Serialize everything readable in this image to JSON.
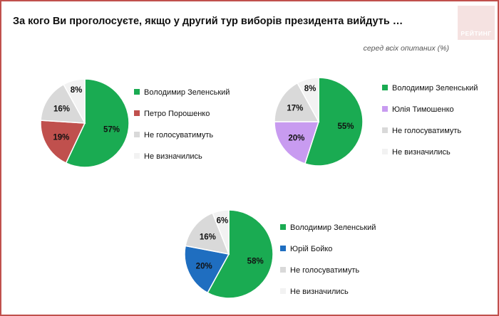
{
  "title": "За кого Ви проголосуєте, якщо у другий тур виборів президента вийдуть …",
  "subtitle": "серед всіх опитаних (%)",
  "logo": {
    "text": "РЕЙТИНГ"
  },
  "colors": {
    "green": "#1aab52",
    "red": "#c0504d",
    "lilac": "#c89bf0",
    "blue": "#1f6ec0",
    "gray": "#d9d9d9",
    "lightgray": "#f2f2f2",
    "frame": "#c0504d"
  },
  "chart_data": [
    {
      "type": "pie",
      "labels": [
        "Володимир Зеленський",
        "Петро Порошенко",
        "Не голосуватимуть",
        "Не визначились"
      ],
      "values": [
        57,
        19,
        16,
        8
      ],
      "value_labels": [
        "57%",
        "19%",
        "16%",
        "8%"
      ],
      "colors": [
        "#1aab52",
        "#c0504d",
        "#d9d9d9",
        "#f2f2f2"
      ],
      "legend": "right"
    },
    {
      "type": "pie",
      "labels": [
        "Володимир Зеленський",
        "Юлія Тимошенко",
        "Не голосуватимуть",
        "Не визначились"
      ],
      "values": [
        55,
        20,
        17,
        8
      ],
      "value_labels": [
        "55%",
        "20%",
        "17%",
        "8%"
      ],
      "colors": [
        "#1aab52",
        "#c89bf0",
        "#d9d9d9",
        "#f2f2f2"
      ],
      "legend": "right"
    },
    {
      "type": "pie",
      "labels": [
        "Володимир Зеленський",
        "Юрій Бойко",
        "Не голосуватимуть",
        "Не визначились"
      ],
      "values": [
        58,
        20,
        16,
        6
      ],
      "value_labels": [
        "58%",
        "20%",
        "16%",
        "6%"
      ],
      "colors": [
        "#1aab52",
        "#1f6ec0",
        "#d9d9d9",
        "#f2f2f2"
      ],
      "legend": "right"
    }
  ]
}
